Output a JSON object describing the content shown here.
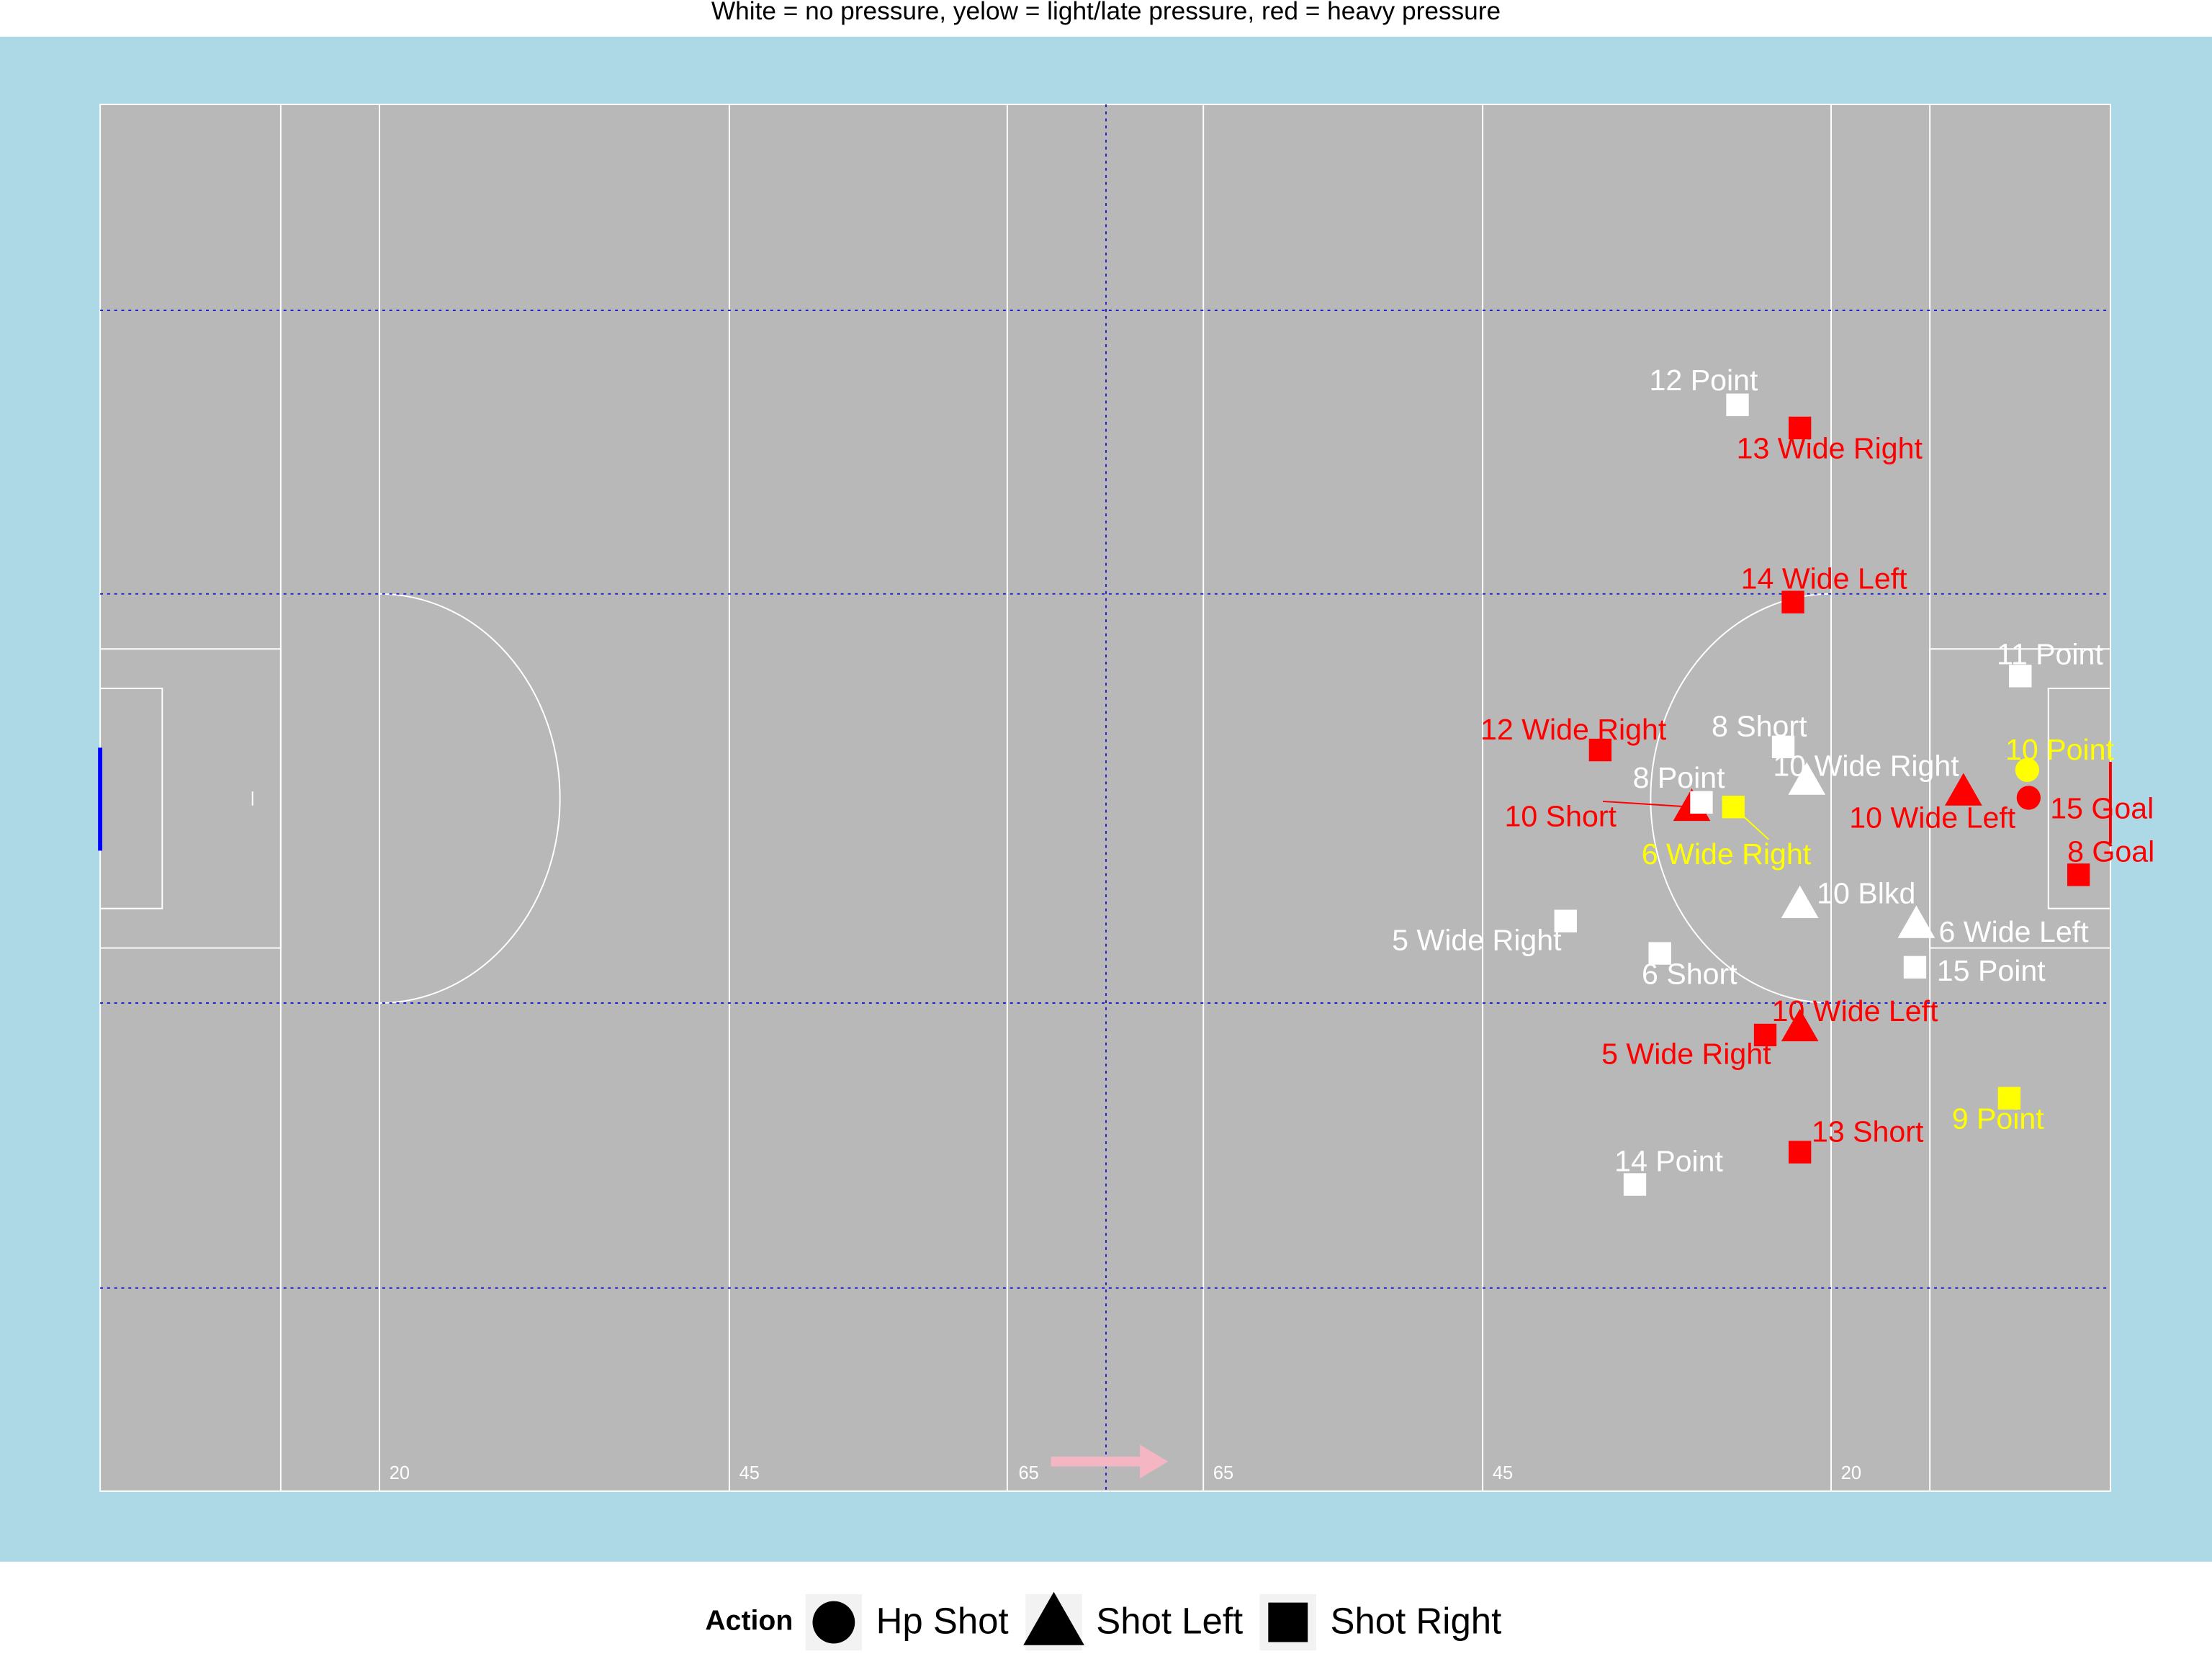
{
  "chart_data": {
    "type": "scatter",
    "title": "White = no pressure, yelow = light/late pressure, red = heavy pressure",
    "xlim": [
      0,
      145
    ],
    "ylim": [
      0,
      90
    ],
    "pitch_markings": [
      "20",
      "45",
      "65",
      "65",
      "45",
      "20"
    ],
    "legend_title": "Action",
    "series": [
      {
        "name": "Hp Shot",
        "shape": "circle",
        "x": [
          139.0,
          139.1
        ],
        "values": [
          46.8,
          45.0
        ],
        "labels": [
          "10 Point",
          "15 Goal"
        ],
        "colors": [
          "#ffff00",
          "#ff0000"
        ]
      },
      {
        "name": "Shot Left",
        "shape": "triangle",
        "x": [
          123.1,
          114.8,
          134.4,
          122.6,
          131.0,
          122.6
        ],
        "values": [
          46.1,
          44.4,
          45.4,
          38.1,
          36.8,
          30.1
        ],
        "labels": [
          "10 Wide Right",
          "10 Short",
          "10 Wide Left",
          "10 Blkd",
          "6 Wide Left",
          "10 Wide Left"
        ],
        "colors": [
          "#ffffff",
          "#ff0000",
          "#ff0000",
          "#ffffff",
          "#ffffff",
          "#ff0000"
        ]
      },
      {
        "name": "Shot Right",
        "shape": "square",
        "x": [
          118.1,
          122.6,
          122.1,
          138.5,
          108.2,
          121.4,
          115.5,
          117.8,
          142.7,
          105.7,
          112.5,
          130.9,
          120.1,
          137.7,
          122.6,
          110.7
        ],
        "values": [
          70.5,
          69.0,
          57.7,
          52.9,
          48.1,
          48.3,
          44.7,
          44.4,
          40.0,
          37.0,
          34.9,
          34.0,
          29.6,
          25.5,
          22.0,
          19.9
        ],
        "labels": [
          "12 Point",
          "13 Wide Right",
          "14 Wide Left",
          "11 Point",
          "12 Wide Right",
          "8 Short",
          "8 Point",
          "6 Wide Right",
          "8 Goal",
          "5 Wide Right",
          "6 Short",
          "15 Point",
          "5 Wide Right",
          "9 Point",
          "13 Short",
          "14 Point"
        ],
        "colors": [
          "#ffffff",
          "#ff0000",
          "#ff0000",
          "#ffffff",
          "#ff0000",
          "#ffffff",
          "#ffffff",
          "#ffff00",
          "#ff0000",
          "#ffffff",
          "#ffffff",
          "#ffffff",
          "#ff0000",
          "#ffff00",
          "#ff0000",
          "#ffffff"
        ]
      }
    ]
  }
}
